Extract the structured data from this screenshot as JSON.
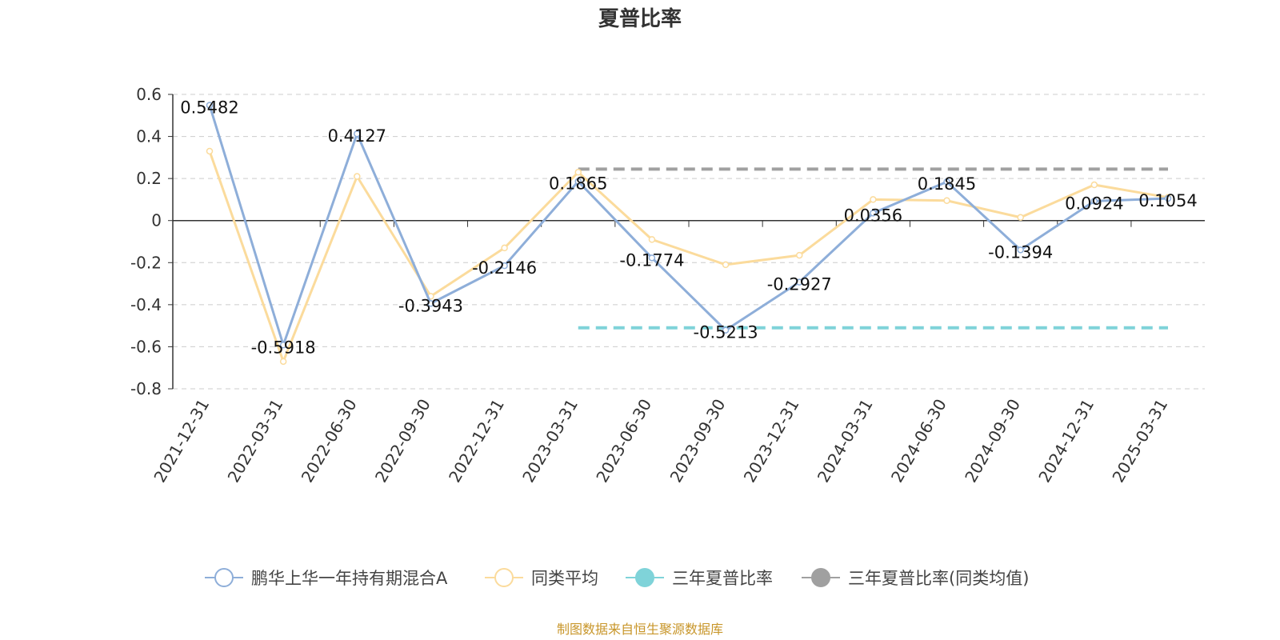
{
  "chart_data": {
    "type": "line",
    "title": "夏普比率",
    "categories": [
      "2021-12-31",
      "2022-03-31",
      "2022-06-30",
      "2022-09-30",
      "2022-12-31",
      "2023-03-31",
      "2023-06-30",
      "2023-09-30",
      "2023-12-31",
      "2024-03-31",
      "2024-06-30",
      "2024-09-30",
      "2024-12-31",
      "2025-03-31"
    ],
    "series": [
      {
        "name": "鹏华上华一年持有期混合A",
        "color": "#8eaed9",
        "values": [
          0.5482,
          -0.5918,
          0.4127,
          -0.3943,
          -0.2146,
          0.1865,
          -0.1774,
          -0.5213,
          -0.2927,
          0.0356,
          0.1845,
          -0.1394,
          0.0924,
          0.1054
        ],
        "labels": [
          "0.5482",
          "-0.5918",
          "0.4127",
          "-0.3943",
          "-0.2146",
          "0.1865",
          "-0.1774",
          "-0.5213",
          "-0.2927",
          "0.0356",
          "0.1845",
          "-0.1394",
          "0.0924",
          "0.1054"
        ]
      },
      {
        "name": "同类平均",
        "color": "#fbdb9c",
        "values": [
          0.33,
          -0.67,
          0.21,
          -0.36,
          -0.13,
          0.23,
          -0.09,
          -0.21,
          -0.165,
          0.1,
          0.095,
          0.015,
          0.17,
          0.11
        ]
      }
    ],
    "reference_lines": [
      {
        "name": "三年夏普比率",
        "color": "#7fd3d9",
        "value": -0.51,
        "from": "2023-03-31",
        "to": "2025-03-31"
      },
      {
        "name": "三年夏普比率(同类均值)",
        "color": "#a0a0a0",
        "value": 0.245,
        "from": "2023-03-31",
        "to": "2025-03-31"
      }
    ],
    "ylim": [
      -0.8,
      0.6
    ],
    "yticks": [
      "0.6",
      "0.4",
      "0.2",
      "0",
      "-0.2",
      "-0.4",
      "-0.6",
      "-0.8"
    ],
    "grid": true,
    "legend_position": "bottom"
  },
  "source_text": "制图数据来自恒生聚源数据库"
}
